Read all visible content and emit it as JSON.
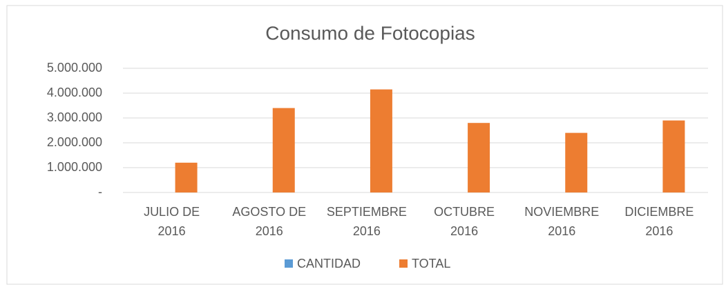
{
  "chart_data": {
    "type": "bar",
    "title": "Consumo de Fotocopias",
    "categories": [
      [
        "JULIO DE",
        "2016"
      ],
      [
        "AGOSTO DE",
        "2016"
      ],
      [
        "SEPTIEMBRE",
        "2016"
      ],
      [
        "OCTUBRE",
        "2016"
      ],
      [
        "NOVIEMBRE",
        "2016"
      ],
      [
        "DICIEMBRE",
        "2016"
      ]
    ],
    "series": [
      {
        "name": "CANTIDAD",
        "color": "#5b9bd5",
        "values": [
          0,
          0,
          0,
          0,
          0,
          0
        ]
      },
      {
        "name": "TOTAL",
        "color": "#ed7d31",
        "values": [
          1200000,
          3400000,
          4150000,
          2800000,
          2400000,
          2900000
        ]
      }
    ],
    "ylim": [
      0,
      5000000
    ],
    "yticks": [
      {
        "value": 0,
        "label": "-"
      },
      {
        "value": 1000000,
        "label": "1.000.000"
      },
      {
        "value": 2000000,
        "label": "2.000.000"
      },
      {
        "value": 3000000,
        "label": "3.000.000"
      },
      {
        "value": 4000000,
        "label": "4.000.000"
      },
      {
        "value": 5000000,
        "label": "5.000.000"
      }
    ],
    "grid": true,
    "legend": "bottom"
  }
}
